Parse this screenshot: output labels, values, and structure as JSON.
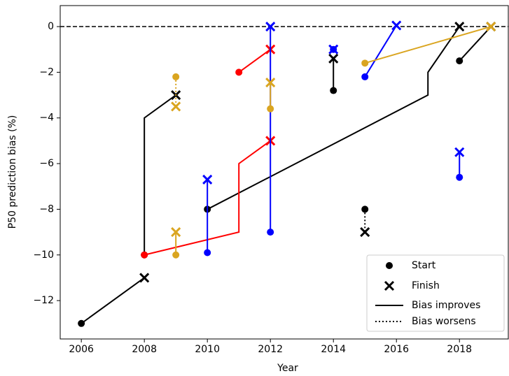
{
  "chart_data": {
    "type": "line",
    "x_label": "Year",
    "y_label": "P50 prediction bias (%)",
    "xlim": [
      2005.33,
      2019.55
    ],
    "ylim": [
      -13.68,
      0.92
    ],
    "xticks": [
      2006,
      2008,
      2010,
      2012,
      2014,
      2016,
      2018
    ],
    "yticks": [
      {
        "value": -12,
        "label": "−12"
      },
      {
        "value": -10,
        "label": "−10"
      },
      {
        "value": -8,
        "label": "−8"
      },
      {
        "value": -6,
        "label": "−6"
      },
      {
        "value": -4,
        "label": "−4"
      },
      {
        "value": -2,
        "label": "−2"
      },
      0
    ],
    "hline": 0,
    "legend": {
      "loc": "lower right",
      "entries": [
        "Start",
        "Finish",
        "Bias improves",
        "Bias worsens"
      ]
    },
    "series": [
      {
        "color": "#000000",
        "style": "solid",
        "x": [
          2006,
          2008
        ],
        "y": [
          -13,
          -11
        ]
      },
      {
        "color": "#000000",
        "style": "solid",
        "x": [
          2008,
          2008,
          2009
        ],
        "y": [
          -10,
          -4,
          -3
        ]
      },
      {
        "color": "#000000",
        "style": "solid",
        "x": [
          2010,
          2017,
          2017,
          2018
        ],
        "y": [
          -8,
          -3,
          -2,
          0
        ]
      },
      {
        "color": "#000000",
        "style": "solid",
        "x": [
          2014,
          2014
        ],
        "y": [
          -2.8,
          -1.4
        ]
      },
      {
        "color": "#000000",
        "style": "dotted",
        "x": [
          2015,
          2015
        ],
        "y": [
          -8,
          -9
        ]
      },
      {
        "color": "#000000",
        "style": "solid",
        "x": [
          2018,
          2019
        ],
        "y": [
          -1.5,
          0
        ]
      },
      {
        "color": "#ff0000",
        "style": "solid",
        "x": [
          2008,
          2011,
          2011,
          2012
        ],
        "y": [
          -10,
          -9,
          -6,
          -5
        ]
      },
      {
        "color": "#ff0000",
        "style": "solid",
        "x": [
          2011,
          2012
        ],
        "y": [
          -2,
          -1
        ]
      },
      {
        "color": "#0000ff",
        "style": "solid",
        "x": [
          2010,
          2010
        ],
        "y": [
          -9.9,
          -6.7
        ]
      },
      {
        "color": "#0000ff",
        "style": "solid",
        "x": [
          2012,
          2012
        ],
        "y": [
          -9,
          0
        ]
      },
      {
        "color": "#0000ff",
        "style": "solid",
        "x": [
          2014,
          2014
        ],
        "y": [
          -1,
          -1
        ]
      },
      {
        "color": "#0000ff",
        "style": "solid",
        "x": [
          2015,
          2016
        ],
        "y": [
          -2.2,
          0.05
        ]
      },
      {
        "color": "#0000ff",
        "style": "solid",
        "x": [
          2018,
          2018
        ],
        "y": [
          -6.6,
          -5.5
        ]
      },
      {
        "color": "#daa520",
        "style": "dotted",
        "x": [
          2009,
          2009
        ],
        "y": [
          -2.2,
          -3.5
        ]
      },
      {
        "color": "#daa520",
        "style": "solid",
        "x": [
          2009,
          2009
        ],
        "y": [
          -10,
          -9
        ]
      },
      {
        "color": "#daa520",
        "style": "solid",
        "x": [
          2012,
          2012
        ],
        "y": [
          -3.6,
          -2.45
        ]
      },
      {
        "color": "#daa520",
        "style": "solid",
        "x": [
          2015,
          2019
        ],
        "y": [
          -1.6,
          0
        ]
      }
    ]
  }
}
